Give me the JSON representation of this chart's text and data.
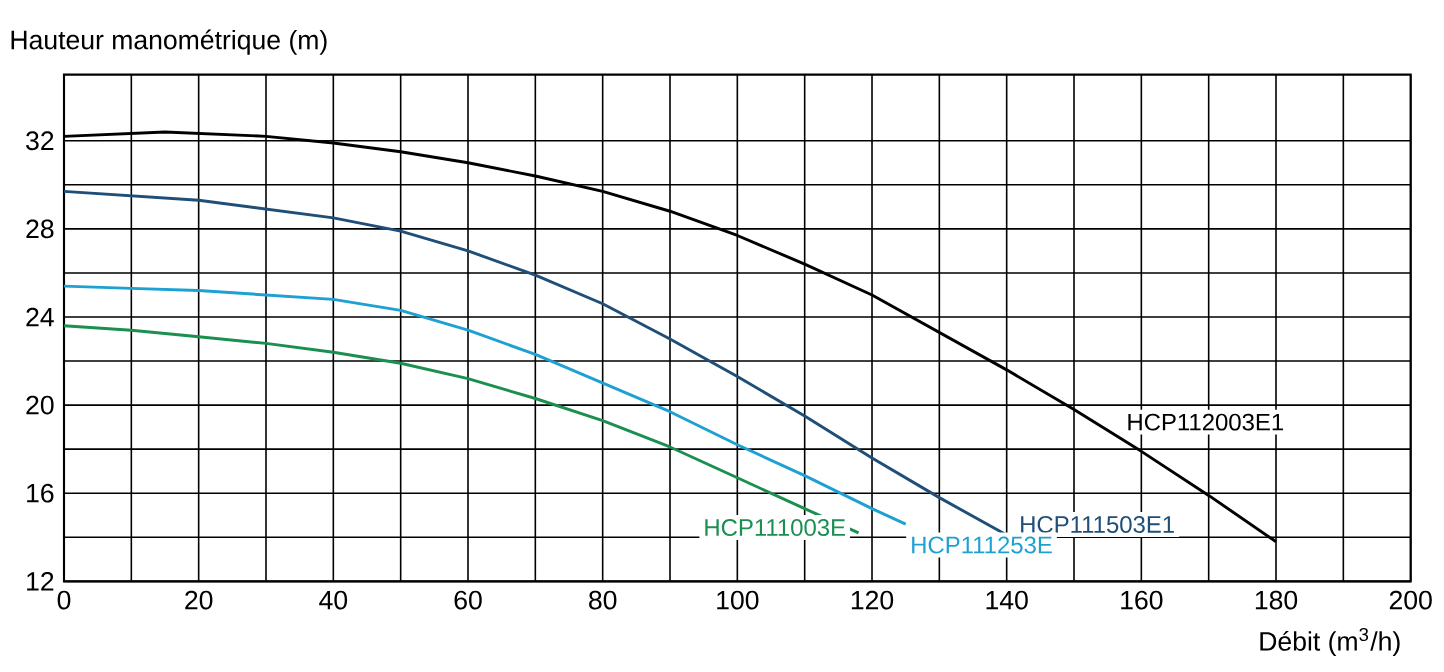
{
  "chart_data": {
    "type": "line",
    "ylabel": "Hauteur manométrique (m)",
    "xlabel": "Débit (m$^{3}$/h)",
    "xlim": [
      0,
      200
    ],
    "ylim": [
      12,
      35
    ],
    "xticks": [
      0,
      20,
      40,
      60,
      80,
      100,
      120,
      140,
      160,
      180,
      200
    ],
    "yticks": [
      12,
      16,
      20,
      24,
      28,
      32
    ],
    "grid": true,
    "legend": false,
    "marker": "none",
    "line_style": "solid",
    "series": [
      {
        "name": "HCP112003E1",
        "color": "#000000",
        "x": [
          0,
          15,
          30,
          40,
          50,
          60,
          70,
          80,
          90,
          100,
          110,
          120,
          130,
          140,
          150,
          160,
          170,
          180
        ],
        "values": [
          32.2,
          32.4,
          32.2,
          31.9,
          31.5,
          31,
          30.4,
          29.7,
          28.8,
          27.7,
          26.4,
          25,
          23.3,
          21.6,
          19.8,
          17.9,
          15.9,
          13.8
        ]
      },
      {
        "name": "HCP111503E1",
        "color": "#1f4e79",
        "x": [
          0,
          10,
          20,
          30,
          40,
          50,
          60,
          70,
          80,
          90,
          100,
          110,
          120,
          130,
          140
        ],
        "values": [
          29.7,
          29.5,
          29.3,
          28.9,
          28.5,
          27.9,
          27,
          25.9,
          24.6,
          23,
          21.3,
          19.5,
          17.6,
          15.8,
          14.1
        ]
      },
      {
        "name": "HCP111253E",
        "color": "#1ea0d2",
        "x": [
          0,
          10,
          20,
          30,
          40,
          50,
          60,
          70,
          80,
          90,
          100,
          110,
          120,
          125
        ],
        "values": [
          25.4,
          25.3,
          25.2,
          25,
          24.8,
          24.3,
          23.4,
          22.3,
          21,
          19.7,
          18.2,
          16.8,
          15.3,
          14.6
        ]
      },
      {
        "name": "HCP111003E",
        "color": "#1a8f4f",
        "x": [
          0,
          10,
          20,
          30,
          40,
          50,
          60,
          70,
          80,
          90,
          100,
          110,
          118
        ],
        "values": [
          23.6,
          23.4,
          23.1,
          22.8,
          22.4,
          21.9,
          21.2,
          20.3,
          19.3,
          18.1,
          16.7,
          15.3,
          14.2
        ]
      }
    ]
  }
}
